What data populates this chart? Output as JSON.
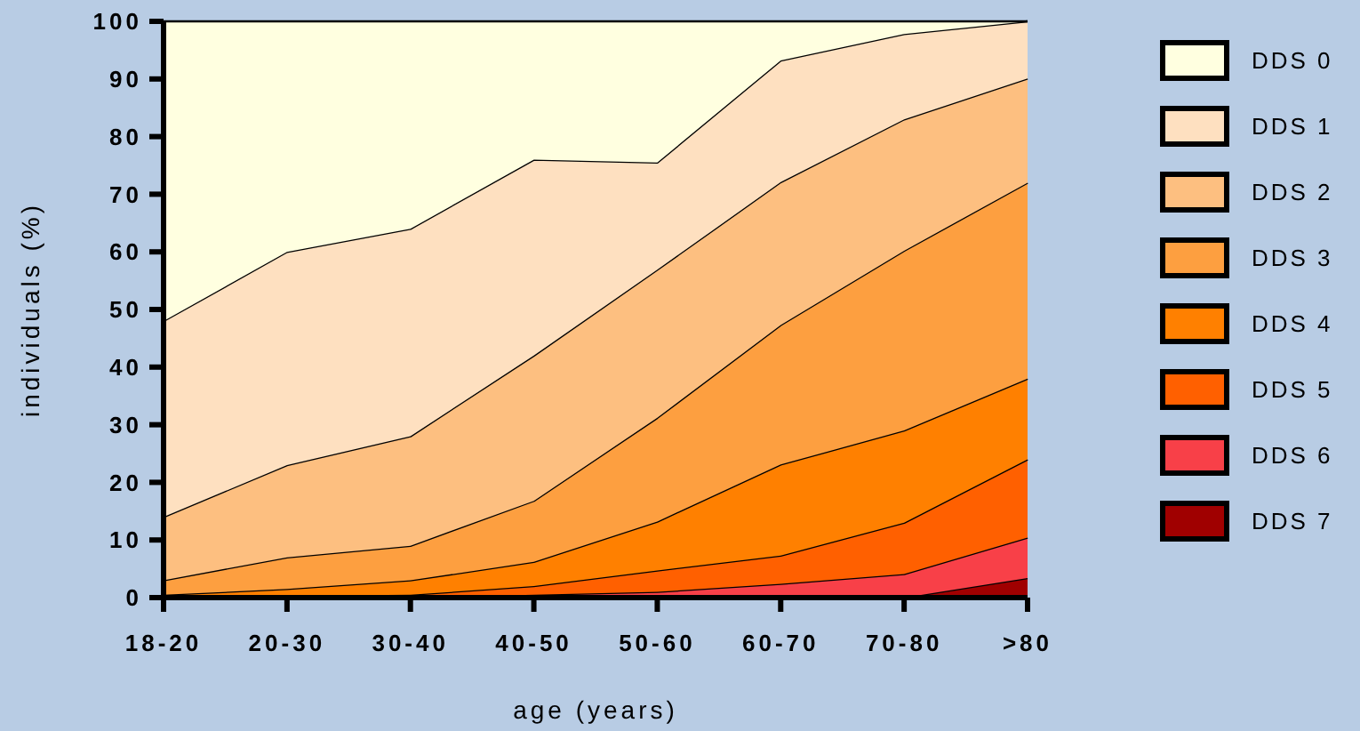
{
  "chart_data": {
    "type": "area",
    "stacked": true,
    "xlabel": "age (years)",
    "ylabel": "individuals (%)",
    "categories": [
      "18-20",
      "20-30",
      "30-40",
      "40-50",
      "50-60",
      "60-70",
      "70-80",
      ">80"
    ],
    "ylim": [
      0,
      100
    ],
    "yticks": [
      0,
      10,
      20,
      30,
      40,
      50,
      60,
      70,
      80,
      90,
      100
    ],
    "legend": "right",
    "series": [
      {
        "name": "DDS 7",
        "color": "#a00000",
        "values": [
          0,
          0,
          0,
          0,
          0,
          0,
          0,
          3.4
        ]
      },
      {
        "name": "DDS 6",
        "color": "#f84048",
        "values": [
          0,
          0,
          0,
          0.5,
          1,
          2.4,
          4.1,
          7
        ]
      },
      {
        "name": "DDS 5",
        "color": "#ff6000",
        "values": [
          0,
          0.3,
          0.5,
          1.5,
          3.7,
          4.9,
          8.9,
          13.6
        ]
      },
      {
        "name": "DDS 4",
        "color": "#ff8000",
        "values": [
          0.5,
          1.2,
          2.5,
          4.2,
          8.5,
          15.8,
          16,
          14
        ]
      },
      {
        "name": "DDS 3",
        "color": "#fd9f40",
        "values": [
          2.5,
          5.5,
          6,
          10.6,
          18,
          24.2,
          31.2,
          34
        ]
      },
      {
        "name": "DDS 2",
        "color": "#fdbf80",
        "values": [
          11,
          16,
          19,
          25.2,
          25.7,
          24.8,
          22.8,
          18.1
        ]
      },
      {
        "name": "DDS 1",
        "color": "#fee0c0",
        "values": [
          34,
          37,
          36,
          34,
          18.6,
          21.1,
          14.8,
          9.9
        ]
      },
      {
        "name": "DDS 0",
        "color": "#ffffe0",
        "values": [
          52,
          40,
          36,
          24,
          24.5,
          6.8,
          2.2,
          0
        ]
      }
    ]
  }
}
